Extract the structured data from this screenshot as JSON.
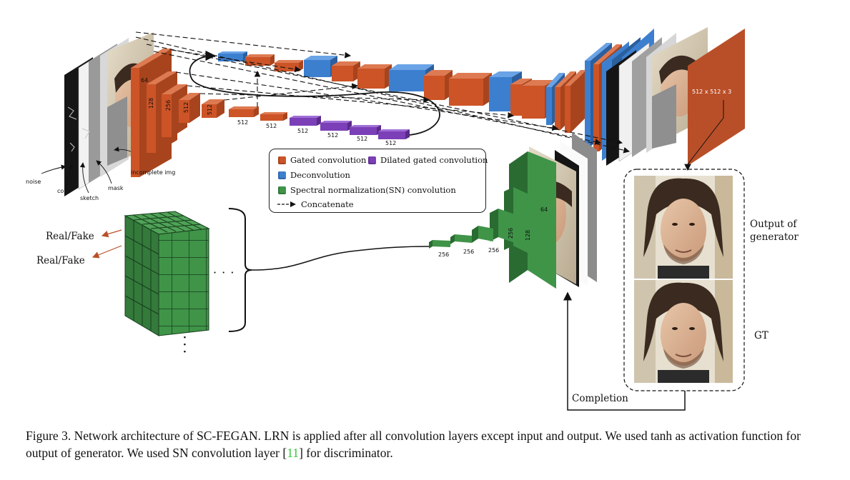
{
  "colors": {
    "gated": "#cc5427",
    "deconv": "#3d7fcf",
    "dilated": "#7b3fb7",
    "sn": "#3f9448",
    "output_plane": "#b94f28",
    "citation": "#36c836"
  },
  "inputs": {
    "noise": "noise",
    "color": "color",
    "sketch": "sketch",
    "mask": "mask",
    "incomplete": "incomplete img"
  },
  "generator": {
    "ch_64": "64",
    "ch_128": "128",
    "ch_256": "256",
    "ch_512a": "512",
    "ch_512b": "512",
    "ch_512_1": "512",
    "ch_512_2": "512",
    "ch_512_3": "512",
    "ch_512_4": "512",
    "ch_512_5": "512",
    "ch_512_6": "512",
    "output_size": "512 x 512 x 3"
  },
  "legend": {
    "gated": "Gated convolution",
    "dilated": "Dilated gated convolution",
    "deconv": "Deconvolution",
    "sn": "Spectral normalization(SN) convolution",
    "concat": "Concatenate"
  },
  "discriminator": {
    "ch_64": "64",
    "ch_128": "128",
    "ch_256a": "256",
    "ch_256b": "256",
    "ch_256c": "256",
    "ch_256d": "256",
    "real_fake_1": "Real/Fake",
    "real_fake_2": "Real/Fake",
    "h_ellipsis": "· · ·",
    "v_ellipsis": "·\n·\n·"
  },
  "outputs": {
    "output_label": "Output of\ngenerator",
    "gt_label": "GT",
    "completion": "Completion"
  },
  "caption": {
    "part1": "Figure 3. Network architecture of SC-FEGAN. LRN is applied after all convolution layers except input and output.  We used tanh as activation function for output of generator. We used SN convolution layer [",
    "ref": "11",
    "part2": "] for discriminator."
  }
}
